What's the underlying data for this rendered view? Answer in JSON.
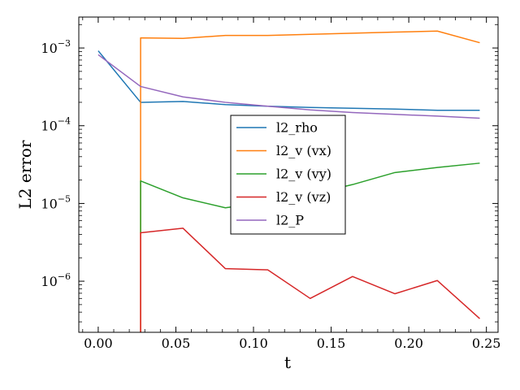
{
  "chart_data": {
    "type": "line",
    "title": "",
    "xlabel": "t",
    "ylabel": "L2 error",
    "xlim": [
      -0.0125,
      0.2575
    ],
    "ylim": [
      2.2e-07,
      0.0025
    ],
    "yscale": "log",
    "grid": false,
    "legend": "center",
    "x_ticks": [
      0.0,
      0.05,
      0.1,
      0.15,
      0.2,
      0.25
    ],
    "x_tick_labels": [
      "0.00",
      "0.05",
      "0.10",
      "0.15",
      "0.20",
      "0.25"
    ],
    "y_ticks": [
      1e-06,
      1e-05,
      0.0001,
      0.001
    ],
    "y_tick_labels": [
      {
        "base": "10",
        "exp": "−6"
      },
      {
        "base": "10",
        "exp": "−5"
      },
      {
        "base": "10",
        "exp": "−4"
      },
      {
        "base": "10",
        "exp": "−3"
      }
    ],
    "series": [
      {
        "name": "l2_rho",
        "color": "#1f77b4",
        "x": [
          0.0,
          0.0273,
          0.0546,
          0.0819,
          0.1092,
          0.1365,
          0.1638,
          0.1911,
          0.2184,
          0.2457
        ],
        "y": [
          0.00092,
          0.0002,
          0.000205,
          0.000187,
          0.000178,
          0.000172,
          0.000168,
          0.000164,
          0.000158,
          0.000158
        ]
      },
      {
        "name": "l2_v (vx)",
        "color": "#ff7f0e",
        "x": [
          0.0273,
          0.0273,
          0.0546,
          0.0819,
          0.1092,
          0.1365,
          0.1638,
          0.1911,
          0.2184,
          0.2457
        ],
        "y": [
          2.2e-07,
          0.00135,
          0.00133,
          0.00145,
          0.00145,
          0.0015,
          0.00155,
          0.0016,
          0.00165,
          0.00117
        ]
      },
      {
        "name": "l2_v (vy)",
        "color": "#2ca02c",
        "x": [
          0.0273,
          0.0273,
          0.0546,
          0.0819,
          0.1092,
          0.1365,
          0.1638,
          0.1911,
          0.2184,
          0.2457
        ],
        "y": [
          4.2e-06,
          1.95e-05,
          1.18e-05,
          8.8e-06,
          1.05e-05,
          1.3e-05,
          1.75e-05,
          2.5e-05,
          2.9e-05,
          3.3e-05
        ]
      },
      {
        "name": "l2_v (vz)",
        "color": "#d62728",
        "x": [
          0.0273,
          0.0273,
          0.0546,
          0.0819,
          0.1092,
          0.1365,
          0.1638,
          0.1911,
          0.2184,
          0.2457
        ],
        "y": [
          2.2e-07,
          4.2e-06,
          4.8e-06,
          1.45e-06,
          1.4e-06,
          6e-07,
          1.15e-06,
          6.9e-07,
          1.02e-06,
          3.3e-07
        ]
      },
      {
        "name": "l2_P",
        "color": "#9467bd",
        "x": [
          0.0,
          0.0273,
          0.0546,
          0.0819,
          0.1092,
          0.1365,
          0.1638,
          0.1911,
          0.2184,
          0.2457
        ],
        "y": [
          0.00082,
          0.00032,
          0.000235,
          0.0002,
          0.000178,
          0.00016,
          0.000148,
          0.00014,
          0.000133,
          0.000125
        ]
      }
    ]
  }
}
